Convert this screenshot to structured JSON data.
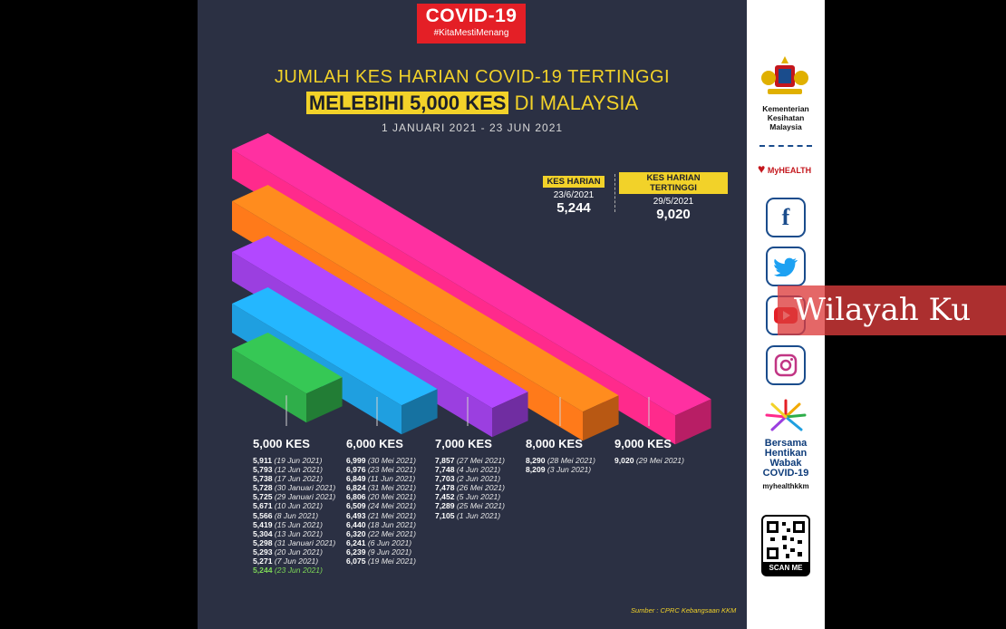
{
  "badge": {
    "title": "COVID-19",
    "hashtag": "#KitaMestiMenang"
  },
  "title": {
    "line1": "JUMLAH KES HARIAN COVID-19 TERTINGGI",
    "line2_highlight": "MELEBIHI 5,000 KES",
    "line2_rest": "DI MALAYSIA",
    "dates": "1 JANUARI 2021 - 23 JUN 2021"
  },
  "stats": {
    "daily": {
      "label": "KES HARIAN",
      "date": "23/6/2021",
      "value": "5,244"
    },
    "highest": {
      "label": "KES HARIAN TERTINGGI",
      "date": "29/5/2021",
      "value": "9,020"
    }
  },
  "chart_data": {
    "type": "bar",
    "categories": [
      "5,000 KES",
      "6,000 KES",
      "7,000 KES",
      "8,000 KES",
      "9,000 KES"
    ],
    "values": [
      5244,
      6999,
      7857,
      8290,
      9020
    ],
    "colors": [
      "#2fae4a",
      "#1f9fe0",
      "#9b3fe0",
      "#ff7a1a",
      "#ff2a8c"
    ],
    "columns": [
      {
        "heading": "5,000 KES",
        "entries": [
          {
            "n": "5,911",
            "d": "(19 Jun 2021)"
          },
          {
            "n": "5,793",
            "d": "(12 Jun 2021)"
          },
          {
            "n": "5,738",
            "d": "(17 Jun 2021)"
          },
          {
            "n": "5,728",
            "d": "(30 Januari 2021)"
          },
          {
            "n": "5,725",
            "d": "(29 Januari 2021)"
          },
          {
            "n": "5,671",
            "d": "(10 Jun 2021)"
          },
          {
            "n": "5,566",
            "d": "(8 Jun 2021)"
          },
          {
            "n": "5,419",
            "d": "(15 Jun 2021)"
          },
          {
            "n": "5,304",
            "d": "(13 Jun 2021)"
          },
          {
            "n": "5,298",
            "d": "(31 Januari 2021)"
          },
          {
            "n": "5,293",
            "d": "(20 Jun 2021)"
          },
          {
            "n": "5,271",
            "d": "(7 Jun 2021)"
          },
          {
            "n": "5,244",
            "d": "(23 Jun 2021)",
            "hi": true
          }
        ]
      },
      {
        "heading": "6,000 KES",
        "entries": [
          {
            "n": "6,999",
            "d": "(30 Mei 2021)"
          },
          {
            "n": "6,976",
            "d": "(23 Mei 2021)"
          },
          {
            "n": "6,849",
            "d": "(11 Jun 2021)"
          },
          {
            "n": "6,824",
            "d": "(31 Mei 2021)"
          },
          {
            "n": "6,806",
            "d": "(20 Mei 2021)"
          },
          {
            "n": "6,509",
            "d": "(24 Mei 2021)"
          },
          {
            "n": "6,493",
            "d": "(21 Mei 2021)"
          },
          {
            "n": "6,440",
            "d": "(18 Jun 2021)"
          },
          {
            "n": "6,320",
            "d": "(22 Mei 2021)"
          },
          {
            "n": "6,241",
            "d": "(6 Jun 2021)"
          },
          {
            "n": "6,239",
            "d": "(9 Jun 2021)"
          },
          {
            "n": "6,075",
            "d": "(19 Mei 2021)"
          }
        ]
      },
      {
        "heading": "7,000 KES",
        "entries": [
          {
            "n": "7,857",
            "d": "(27 Mei 2021)"
          },
          {
            "n": "7,748",
            "d": "(4 Jun 2021)"
          },
          {
            "n": "7,703",
            "d": "(2 Jun 2021)"
          },
          {
            "n": "7,478",
            "d": "(26 Mei 2021)"
          },
          {
            "n": "7,452",
            "d": "(5 Jun 2021)"
          },
          {
            "n": "7,289",
            "d": "(25 Mei 2021)"
          },
          {
            "n": "7,105",
            "d": "(1 Jun 2021)"
          }
        ]
      },
      {
        "heading": "8,000 KES",
        "entries": [
          {
            "n": "8,290",
            "d": "(28 Mei 2021)"
          },
          {
            "n": "8,209",
            "d": "(3 Jun 2021)"
          }
        ]
      },
      {
        "heading": "9,000 KES",
        "entries": [
          {
            "n": "9,020",
            "d": "(29 Mei 2021)"
          }
        ]
      }
    ]
  },
  "source": "Sumber : CPRC Kebangsaan KKM",
  "sidebar": {
    "ministry_line1": "Kementerian",
    "ministry_line2": "Kesihatan",
    "ministry_line3": "Malaysia",
    "myhealth": "MyHEALTH",
    "campaign_line1": "Bersama",
    "campaign_line2": "Hentikan",
    "campaign_line3": "Wabak",
    "campaign_line4": "COVID-19",
    "handle": "myhealthkkm",
    "scan": "SCAN ME",
    "icons": [
      "facebook-icon",
      "twitter-icon",
      "youtube-icon",
      "instagram-icon"
    ]
  },
  "watermark": "Wilayah Ku"
}
